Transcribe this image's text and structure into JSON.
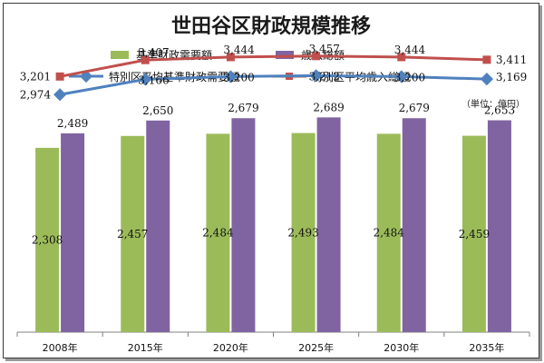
{
  "chart_data": {
    "type": "bar",
    "title": "世田谷区財政規模推移",
    "unit": "（単位：億円）",
    "categories": [
      "2008年",
      "2015年",
      "2020年",
      "2025年",
      "2030年",
      "2035年"
    ],
    "series": [
      {
        "name": "基準財政需要額",
        "kind": "bar",
        "color": "#9bbb59",
        "values": [
          2308,
          2457,
          2484,
          2493,
          2484,
          2459
        ],
        "labels": [
          "2,308",
          "2,457",
          "2,484",
          "2,493",
          "2,484",
          "2,459"
        ]
      },
      {
        "name": "歳入総額",
        "kind": "bar",
        "color": "#8064a2",
        "values": [
          2489,
          2650,
          2679,
          2689,
          2679,
          2653
        ],
        "labels": [
          "2,489",
          "2,650",
          "2,679",
          "2,689",
          "2,679",
          "2,653"
        ]
      },
      {
        "name": "特別区平均基準財政需要額",
        "kind": "line",
        "color": "#4f81bd",
        "values": [
          2974,
          3166,
          3200,
          3212,
          3200,
          3169
        ],
        "labels": [
          "2,974",
          "3,166",
          "3,200",
          "3,212",
          "3,200",
          "3,169"
        ]
      },
      {
        "name": "特別区平均歳入総額",
        "kind": "line",
        "color": "#c0504d",
        "values": [
          3201,
          3407,
          3444,
          3457,
          3444,
          3411
        ],
        "labels": [
          "3,201",
          "3,407",
          "3,444",
          "3,457",
          "3,444",
          "3,411"
        ]
      }
    ],
    "ylim": [
      0,
      3900
    ],
    "grid": false,
    "legend_position": "top"
  }
}
